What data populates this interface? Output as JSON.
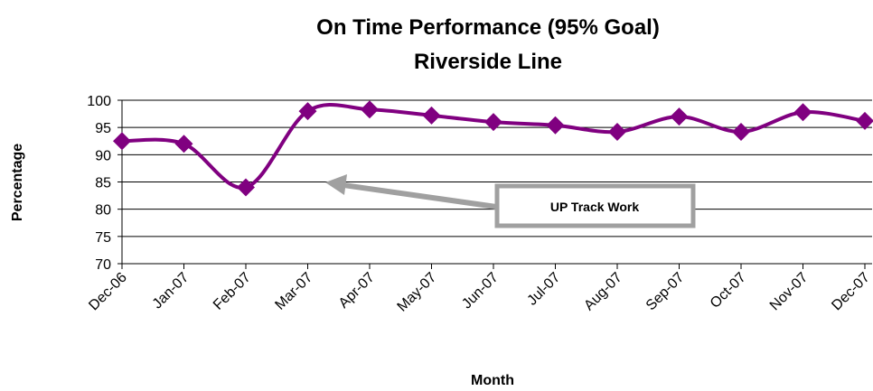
{
  "chart_data": {
    "type": "line",
    "title": "On Time Performance  (95% Goal)",
    "subtitle": "Riverside Line",
    "x_label": "Month",
    "y_label": "Percentage",
    "categories": [
      "Dec-06",
      "Jan-07",
      "Feb-07",
      "Mar-07",
      "Apr-07",
      "May-07",
      "Jun-07",
      "Jul-07",
      "Aug-07",
      "Sep-07",
      "Oct-07",
      "Nov-07",
      "Dec-07"
    ],
    "series": [
      {
        "name": "Riverside Line",
        "color": "#800080",
        "values": [
          92.5,
          92,
          84,
          98,
          98.3,
          97.2,
          96,
          95.4,
          94.2,
          97,
          94.2,
          97.8,
          96.2
        ]
      }
    ],
    "ylim": [
      70,
      100
    ],
    "yticks": [
      70,
      75,
      80,
      85,
      90,
      95,
      100
    ],
    "grid": true,
    "annotation": "UP Track Work"
  }
}
